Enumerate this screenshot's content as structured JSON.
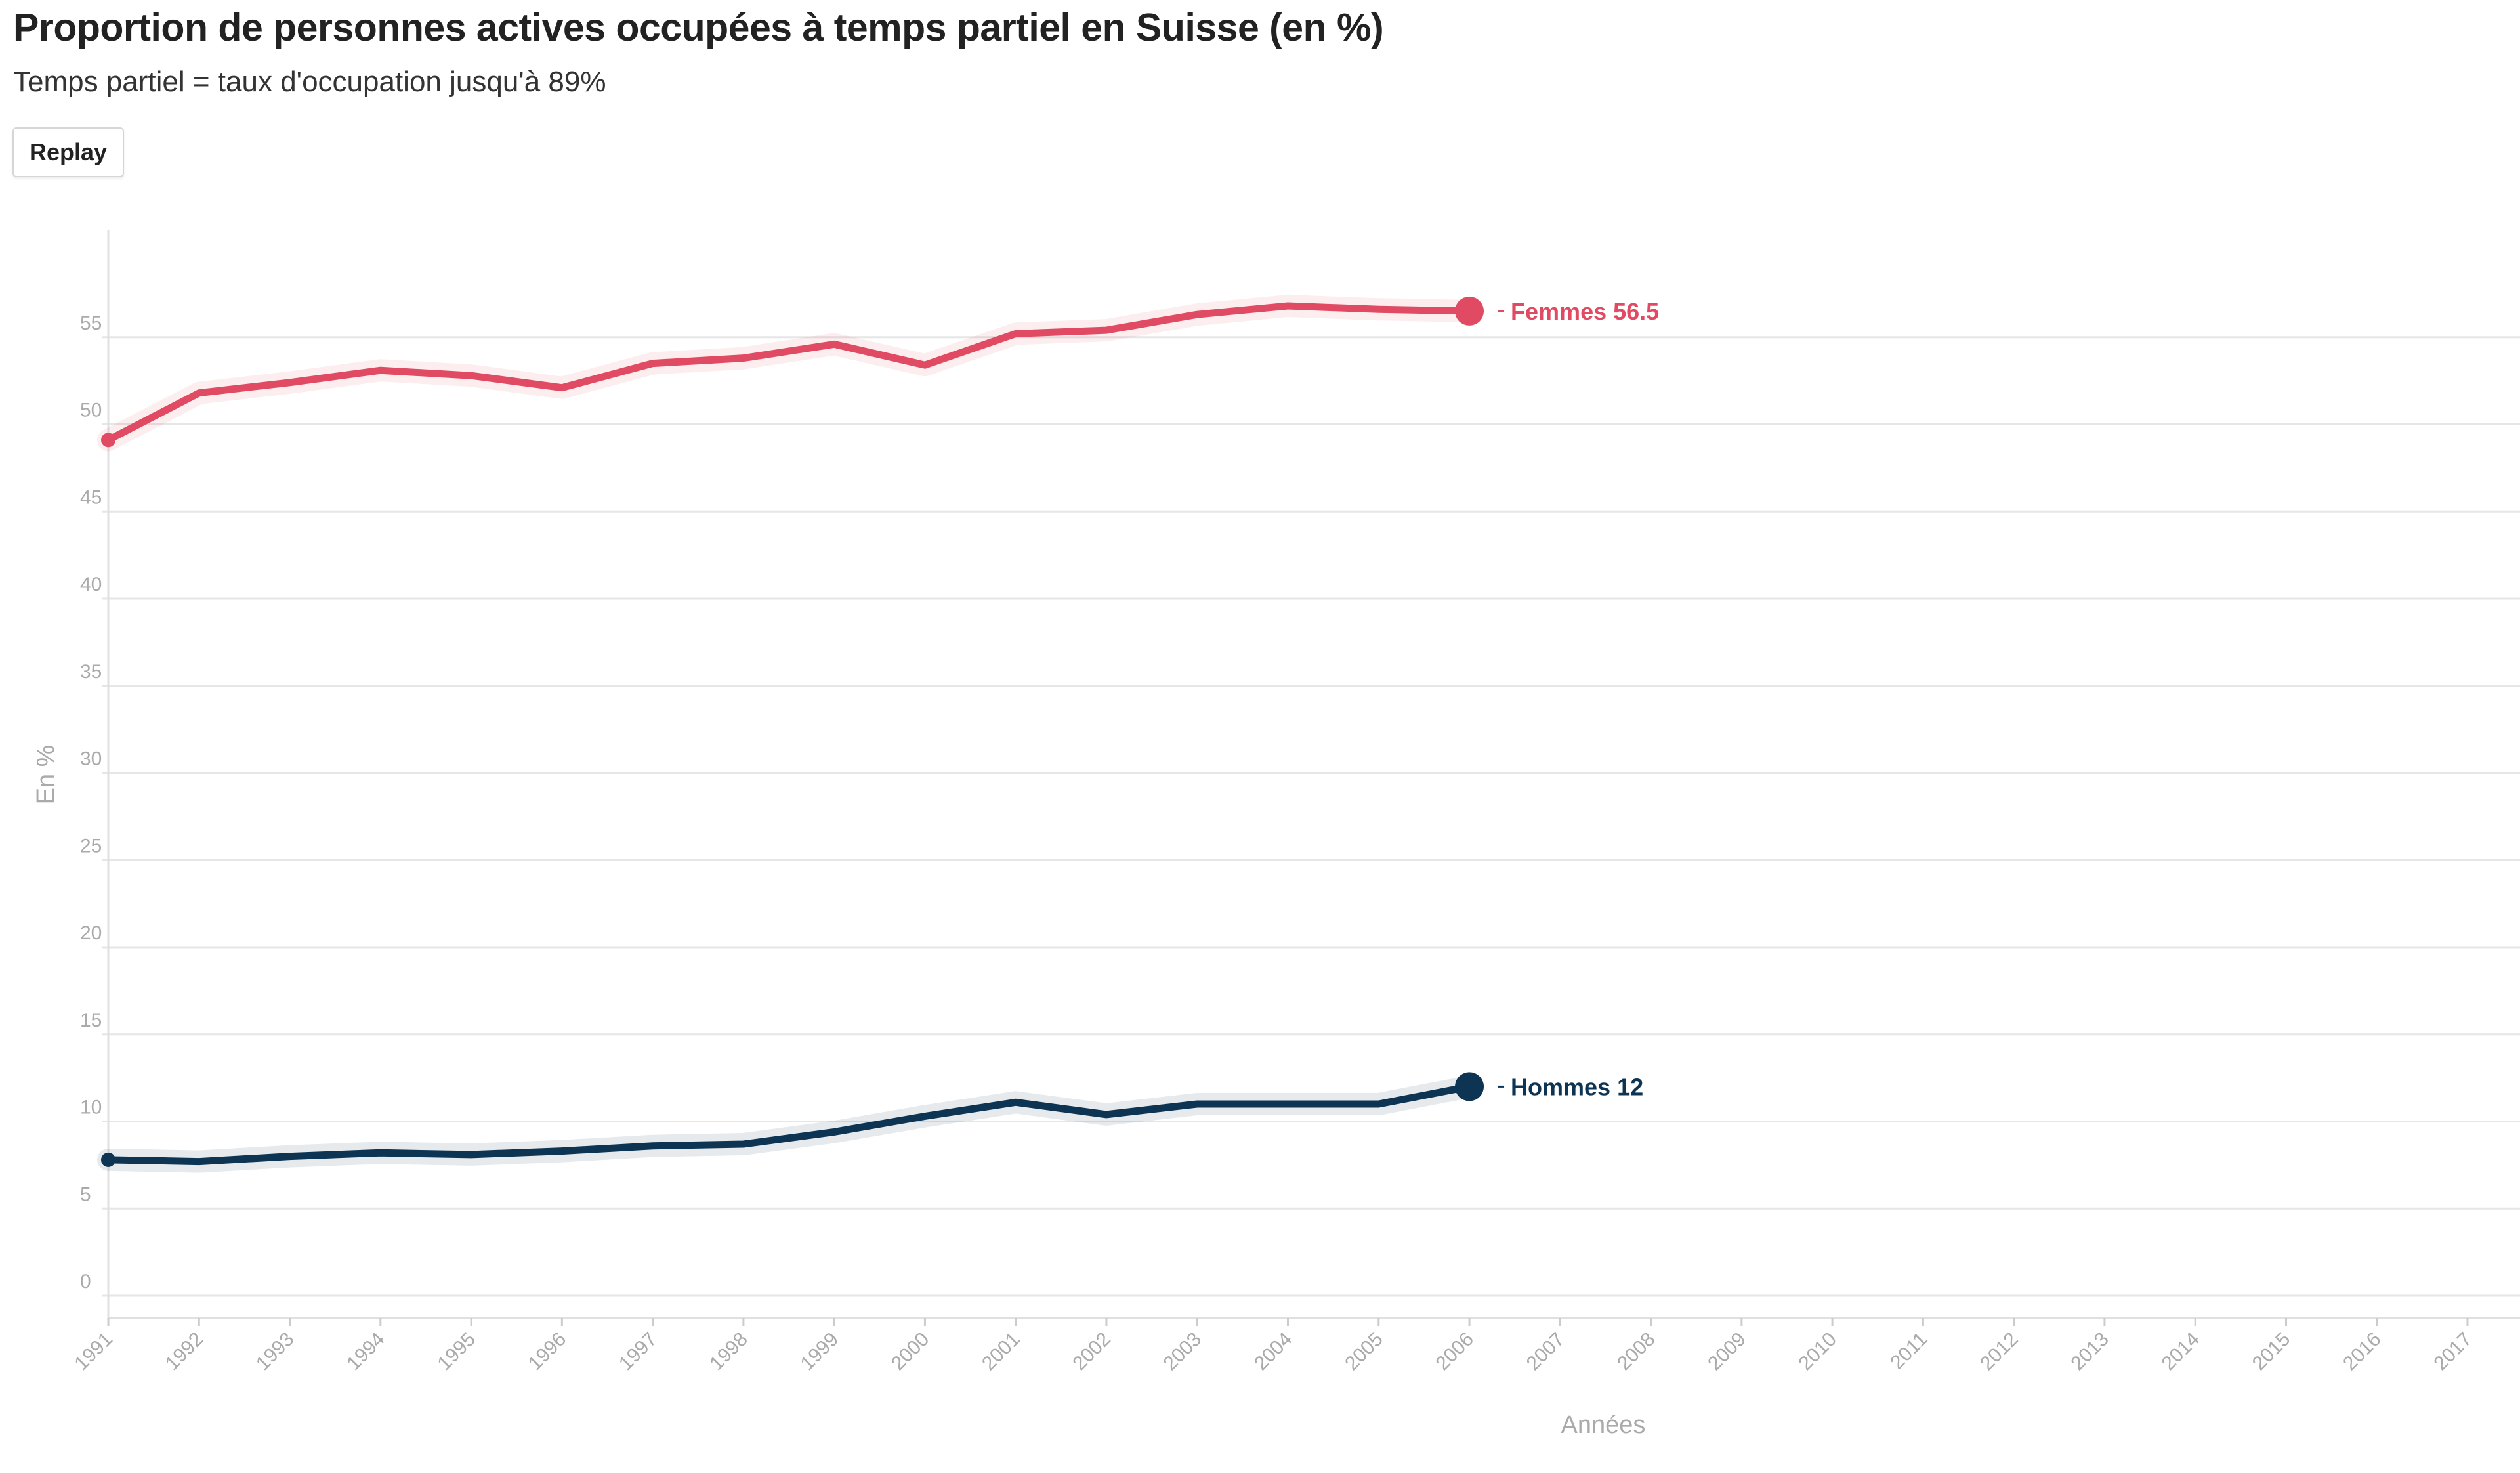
{
  "title": "Proportion de personnes actives occupées à temps partiel en Suisse (en %)",
  "subtitle": "Temps partiel = taux d'occupation jusqu'à 89%",
  "replay_label": "Replay",
  "colors": {
    "femmes": "#e04a63",
    "hommes": "#0d3553",
    "grid": "#e6e6e6",
    "axis_text": "#aaaaaa"
  },
  "chart_data": {
    "type": "line",
    "title": "Proportion de personnes actives occupées à temps partiel en Suisse (en %)",
    "subtitle": "Temps partiel = taux d'occupation jusqu'à 89%",
    "xlabel": "Années",
    "ylabel": "En %",
    "xlim": [
      1991,
      2017
    ],
    "ylim": [
      -1,
      61
    ],
    "yticks": [
      0,
      5,
      10,
      15,
      20,
      25,
      30,
      35,
      40,
      45,
      50,
      55
    ],
    "xticks": [
      "1991",
      "1992",
      "1993",
      "1994",
      "1995",
      "1996",
      "1997",
      "1998",
      "1999",
      "2000",
      "2001",
      "2002",
      "2003",
      "2004",
      "2005",
      "2006",
      "2007",
      "2008",
      "2009",
      "2010",
      "2011",
      "2012",
      "2013",
      "2014",
      "2015",
      "2016",
      "2017"
    ],
    "grid": true,
    "legend": "end-of-line labels",
    "series": [
      {
        "name": "Femmes",
        "color": "#e04a63",
        "end_label": "Femmes 56.5",
        "x": [
          1991,
          1992,
          1993,
          1994,
          1995,
          1996,
          1997,
          1998,
          1999,
          2000,
          2001,
          2002,
          2003,
          2004,
          2005,
          2006
        ],
        "values": [
          49.1,
          51.8,
          52.4,
          53.1,
          52.8,
          52.1,
          53.5,
          53.8,
          54.6,
          53.4,
          55.2,
          55.4,
          56.3,
          56.8,
          56.6,
          56.5
        ]
      },
      {
        "name": "Hommes",
        "color": "#0d3553",
        "end_label": "Hommes 12",
        "x": [
          1991,
          1992,
          1993,
          1994,
          1995,
          1996,
          1997,
          1998,
          1999,
          2000,
          2001,
          2002,
          2003,
          2004,
          2005,
          2006
        ],
        "values": [
          7.8,
          7.7,
          8.0,
          8.2,
          8.1,
          8.3,
          8.6,
          8.7,
          9.4,
          10.3,
          11.1,
          10.4,
          11.0,
          11.0,
          11.0,
          12.0
        ]
      }
    ]
  }
}
